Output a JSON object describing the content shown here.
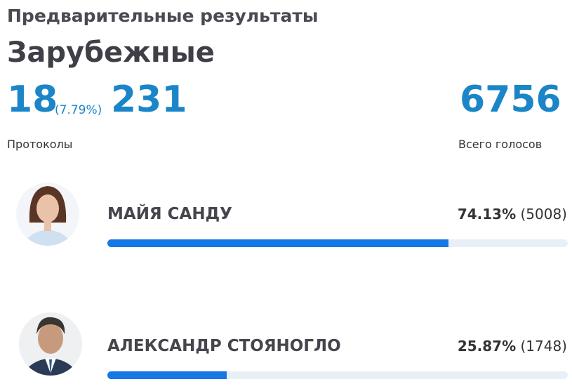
{
  "header": {
    "title": "Предварительные результаты",
    "region": "Зарубежные"
  },
  "protocols": {
    "count": 18,
    "share": {
      "value": 7.79,
      "label": "(7.79%)"
    },
    "total": 231,
    "label": "Протоколы"
  },
  "votes": {
    "total": 6756,
    "label": "Всего голосов"
  },
  "candidates": [
    {
      "name": "МАЙЯ САНДУ",
      "percent": {
        "value": 74.13,
        "label": "74.13%"
      },
      "votes": {
        "value": 5008,
        "label": "(5008)"
      }
    },
    {
      "name": "АЛЕКСАНДР СТОЯНОГЛО",
      "percent": {
        "value": 25.87,
        "label": "25.87%"
      },
      "votes": {
        "value": 1748,
        "label": "(1748)"
      }
    }
  ]
}
